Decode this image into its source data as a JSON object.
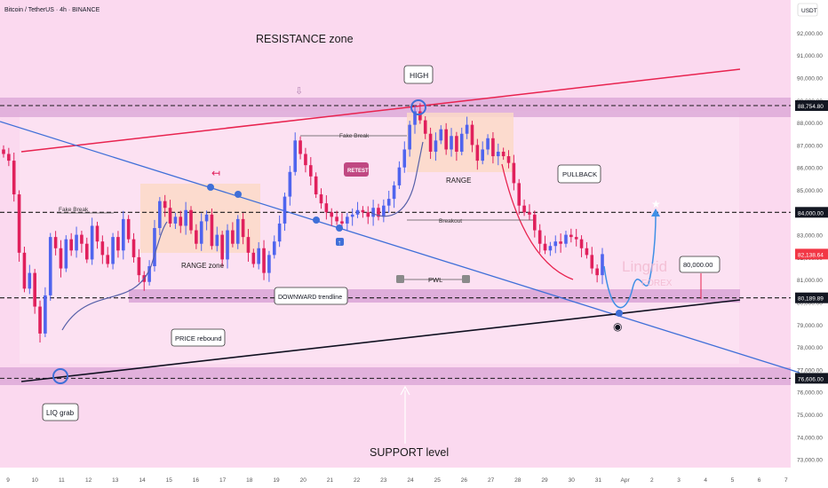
{
  "header": {
    "symbol_line": "Bitcoin / TetherUS · 4h · BINANCE"
  },
  "currency_badge": "USDT",
  "annotations": {
    "resistance_zone": "RESISTANCE zone",
    "support_level": "SUPPORT level",
    "high": "HIGH",
    "pullback": "PULLBACK",
    "fake_break_left": "Fake Break",
    "fake_break_mid": "Fake Break",
    "range_zone": "RANGE zone",
    "range": "RANGE",
    "retest": "RETEST",
    "breakout": "Breakout",
    "pwl": "PWL",
    "downward_trendline": "DOWNWARD trendline",
    "price_rebound": "PRICE rebound",
    "liq_grab": "LIQ grab",
    "target_price": "80,000.00",
    "watermark_1": "Lingrid",
    "watermark_2": "FOREX"
  },
  "colors": {
    "background": "#fbd9ef",
    "zone_band": "#dca8d8",
    "up_candle": "#4f64ee",
    "down_candle": "#e0205c",
    "resistance_line": "#e8234f",
    "down_trendline": "#3f6fd8",
    "support_line": "#101020",
    "retest_badge": "#c04882",
    "price_tag_red": "#f23645",
    "price_tag_dark": "#131722"
  },
  "price_tags": {
    "level_88754": "88,754.80",
    "level_84000": "84,000.00",
    "current": "82,138.64",
    "level_80189": "80,189.89",
    "level_76606": "76,606.00"
  },
  "chart_data": {
    "type": "candlestick",
    "title": "Bitcoin / TetherUS · 4h · BINANCE",
    "ylabel": "USDT",
    "ylim": [
      72500,
      93000
    ],
    "y_ticks": [
      "92,000.00",
      "91,000.00",
      "90,000.00",
      "89,000.00",
      "88,000.00",
      "87,000.00",
      "86,000.00",
      "85,000.00",
      "84,000.00",
      "83,000.00",
      "82,000.00",
      "81,000.00",
      "80,000.00",
      "79,000.00",
      "78,000.00",
      "77,000.00",
      "76,000.00",
      "75,000.00",
      "74,000.00",
      "73,000.00"
    ],
    "x_ticks": [
      "9",
      "10",
      "11",
      "12",
      "13",
      "14",
      "15",
      "16",
      "17",
      "18",
      "19",
      "20",
      "21",
      "22",
      "23",
      "24",
      "25",
      "26",
      "27",
      "28",
      "29",
      "30",
      "31",
      "Apr",
      "2",
      "3",
      "4",
      "5",
      "6",
      "7"
    ],
    "horizontal_levels": [
      88754.8,
      84000.0,
      80189.89,
      76606.0
    ],
    "current_price": 82138.64,
    "target_price": 80000.0,
    "closes": [
      86600,
      86300,
      84800,
      82200,
      80600,
      81300,
      79800,
      78600,
      80300,
      82900,
      82400,
      81500,
      82800,
      82300,
      83000,
      82600,
      81900,
      83400,
      82700,
      82100,
      81700,
      82900,
      82300,
      83700,
      82800,
      82000,
      81200,
      80900,
      81600,
      83300,
      84500,
      84200,
      83500,
      83800,
      83400,
      84100,
      83200,
      82600,
      83600,
      83900,
      82500,
      83000,
      81900,
      83200,
      82600,
      83700,
      82900,
      82200,
      81700,
      82400,
      81300,
      82100,
      82700,
      83500,
      84700,
      85800,
      87200,
      86600,
      86100,
      85600,
      84800,
      84400,
      84000,
      83800,
      83600,
      83500,
      83800,
      83900,
      84100,
      84000,
      83800,
      84200,
      83800,
      84300,
      84600,
      85200,
      86000,
      86800,
      87900,
      88500,
      88100,
      87500,
      86700,
      87200,
      87700,
      86800,
      87400,
      86700,
      87500,
      87900,
      87000,
      86300,
      86800,
      87300,
      86500,
      86700,
      86500,
      86200,
      85300,
      84300,
      84000,
      83900,
      83200,
      82600,
      82300,
      82500,
      82700,
      82600,
      83000,
      82900,
      82800,
      82400,
      82100,
      81500,
      81200,
      82138.64
    ]
  }
}
